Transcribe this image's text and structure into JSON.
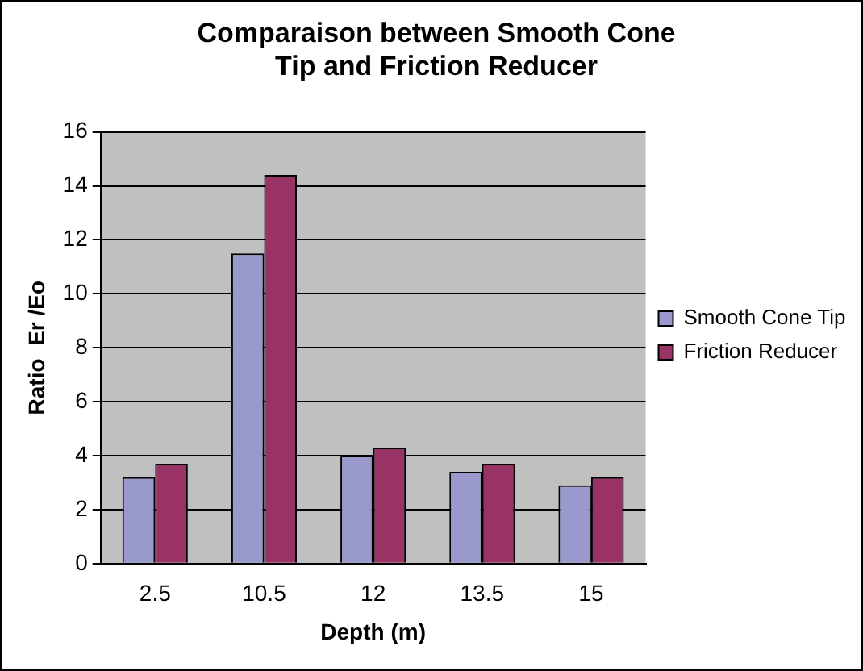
{
  "chart_data": {
    "type": "bar",
    "title": "Comparaison between Smooth Cone Tip and Friction Reducer",
    "xlabel": "Depth (m)",
    "ylabel": "Ratio  Er /Eo",
    "categories": [
      "2.5",
      "10.5",
      "12",
      "13.5",
      "15"
    ],
    "series": [
      {
        "name": "Smooth Cone Tip",
        "color": "#9999cc",
        "values": [
          3.2,
          11.5,
          4.0,
          3.4,
          2.9
        ]
      },
      {
        "name": "Friction Reducer",
        "color": "#993366",
        "values": [
          3.7,
          14.4,
          4.3,
          3.7,
          3.2
        ]
      }
    ],
    "ylim": [
      0,
      16
    ],
    "yticks": [
      0,
      2,
      4,
      6,
      8,
      10,
      12,
      14,
      16
    ],
    "grid": "y",
    "legend": "right"
  }
}
